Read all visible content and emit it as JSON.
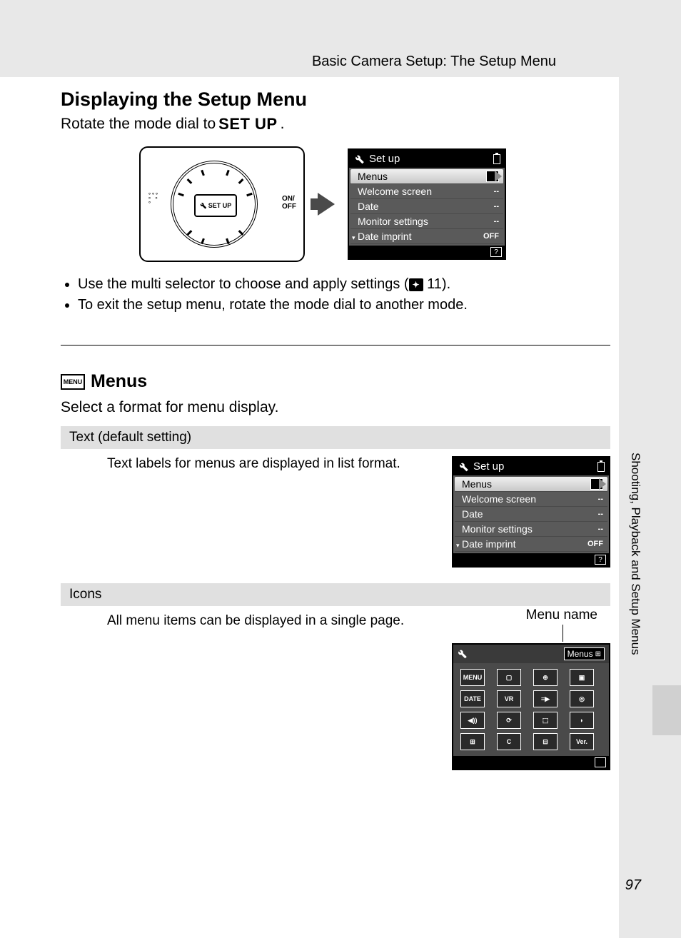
{
  "breadcrumb": "Basic Camera Setup: The Setup Menu",
  "heading1": "Displaying the Setup Menu",
  "instr_prefix": "Rotate the mode dial to ",
  "instr_setup": "SET UP",
  "instr_suffix": ".",
  "dial": {
    "label": "SET UP",
    "onoff_line1": "ON/",
    "onoff_line2": "OFF"
  },
  "lcd_main": {
    "title": "Set up",
    "rows": [
      {
        "label": "Menus",
        "selected": true,
        "icon": "≣"
      },
      {
        "label": "Welcome screen",
        "val": "--"
      },
      {
        "label": "Date",
        "val": "--"
      },
      {
        "label": "Monitor settings",
        "val": "--"
      },
      {
        "label": "Date imprint",
        "val": "OFF"
      }
    ]
  },
  "bullets": [
    {
      "text_before": "Use the multi selector to choose and apply settings (",
      "ref": "11",
      "text_after": ")."
    },
    {
      "text_before": "To exit the setup menu, rotate the mode dial to another mode.",
      "ref": "",
      "text_after": ""
    }
  ],
  "heading2": "Menus",
  "menu_icon": "MENU",
  "subtext": "Select a format for menu display.",
  "option1": {
    "header": "Text (default setting)",
    "desc": "Text labels for menus are displayed in list format."
  },
  "option2": {
    "header": "Icons",
    "desc": "All menu items can be displayed in a single page.",
    "menu_name_label": "Menu name",
    "menus_tag": "Menus"
  },
  "icons_grid": [
    "MENU",
    "▢",
    "⊕",
    "▣",
    "DATE",
    "VR",
    "≡▶",
    "◎",
    "◀))",
    "⟳",
    "⬚",
    "◗",
    "⊞",
    "C",
    "⊟",
    "Ver."
  ],
  "side_text": "Shooting, Playback and Setup Menus",
  "page_number": "97"
}
